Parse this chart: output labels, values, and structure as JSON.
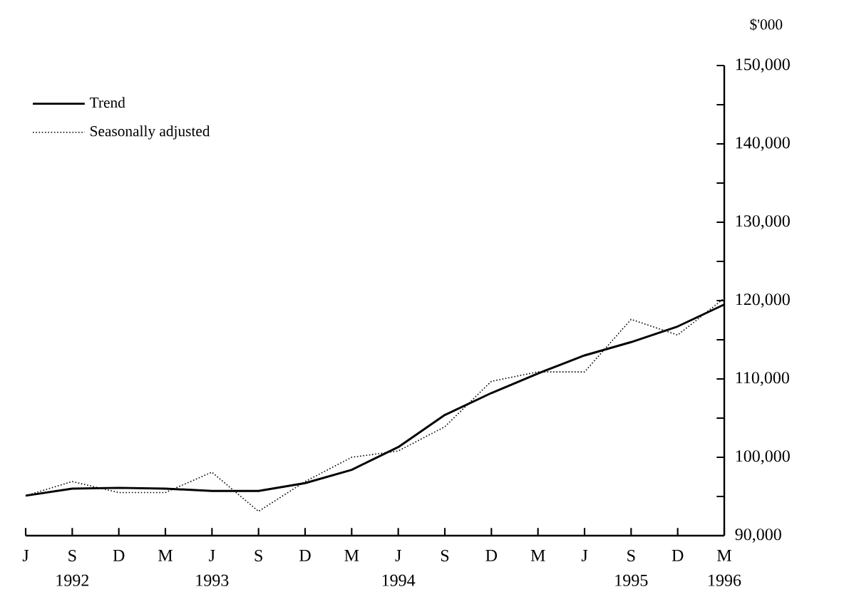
{
  "chart_data": {
    "type": "line",
    "ylabel": "$'000",
    "categories": [
      "J",
      "S",
      "D",
      "M",
      "J",
      "S",
      "D",
      "M",
      "J",
      "S",
      "D",
      "M",
      "J",
      "S",
      "D",
      "M"
    ],
    "series": [
      {
        "name": "Trend",
        "color": "#000000",
        "line_style": "solid",
        "values": [
          95100,
          96000,
          96100,
          96000,
          95700,
          95700,
          96700,
          98400,
          101300,
          105400,
          108200,
          110700,
          113000,
          114700,
          116700,
          119500
        ]
      },
      {
        "name": "Seasonally adjusted",
        "color": "#000000",
        "line_style": "dotted",
        "values": [
          95100,
          96900,
          95500,
          95500,
          98100,
          93100,
          96900,
          100000,
          100800,
          103900,
          109700,
          110900,
          110900,
          117600,
          115600,
          120300
        ]
      }
    ],
    "ylim": [
      90000,
      150000
    ],
    "yticks": [
      {
        "value": 90000,
        "label": "90,000"
      },
      {
        "value": 95000,
        "label": null
      },
      {
        "value": 100000,
        "label": "100,000"
      },
      {
        "value": 105000,
        "label": null
      },
      {
        "value": 110000,
        "label": "110,000"
      },
      {
        "value": 115000,
        "label": null
      },
      {
        "value": 120000,
        "label": "120,000"
      },
      {
        "value": 125000,
        "label": null
      },
      {
        "value": 130000,
        "label": "130,000"
      },
      {
        "value": 135000,
        "label": null
      },
      {
        "value": 140000,
        "label": "140,000"
      },
      {
        "value": 145000,
        "label": null
      },
      {
        "value": 150000,
        "label": "150,000"
      }
    ],
    "annotations": [
      "1992",
      "1993",
      "1994",
      "1995",
      "1996"
    ],
    "legend": "top left",
    "marker": "none"
  }
}
